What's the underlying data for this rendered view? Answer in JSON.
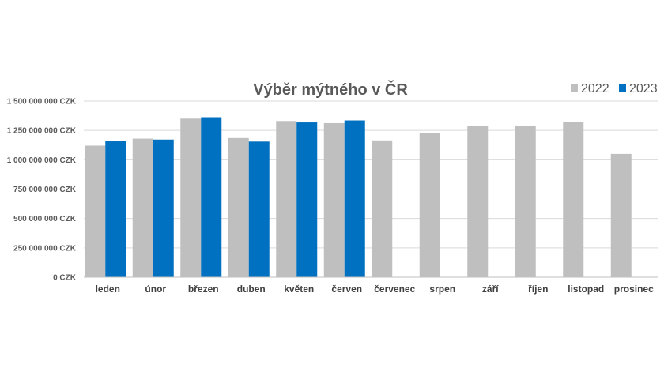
{
  "chart_data": {
    "type": "bar",
    "title": "Výběr mýtného v ČR",
    "xlabel": "",
    "ylabel": "",
    "categories": [
      "leden",
      "únor",
      "březen",
      "duben",
      "květen",
      "červen",
      "červenec",
      "srpen",
      "září",
      "říjen",
      "listopad",
      "prosinec"
    ],
    "series": [
      {
        "name": "2022",
        "color": "#bfbfbf",
        "values": [
          1120000000,
          1180000000,
          1350000000,
          1185000000,
          1330000000,
          1312000000,
          1165000000,
          1230000000,
          1290000000,
          1290000000,
          1325000000,
          1050000000
        ]
      },
      {
        "name": "2023",
        "color": "#0070c0",
        "values": [
          1162000000,
          1172000000,
          1362000000,
          1155000000,
          1318000000,
          1335000000,
          null,
          null,
          null,
          null,
          null,
          null
        ]
      }
    ],
    "ylim": [
      0,
      1500000000
    ],
    "yticks": [
      0,
      250000000,
      500000000,
      750000000,
      1000000000,
      1250000000,
      1500000000
    ],
    "ytick_labels": [
      "0 CZK",
      "250 000 000 CZK",
      "500 000 000 CZK",
      "750 000 000 CZK",
      "1 000 000 000 CZK",
      "1 250 000 000 CZK",
      "1 500 000 000 CZK"
    ],
    "grid": true,
    "legend_position": "top-right"
  }
}
